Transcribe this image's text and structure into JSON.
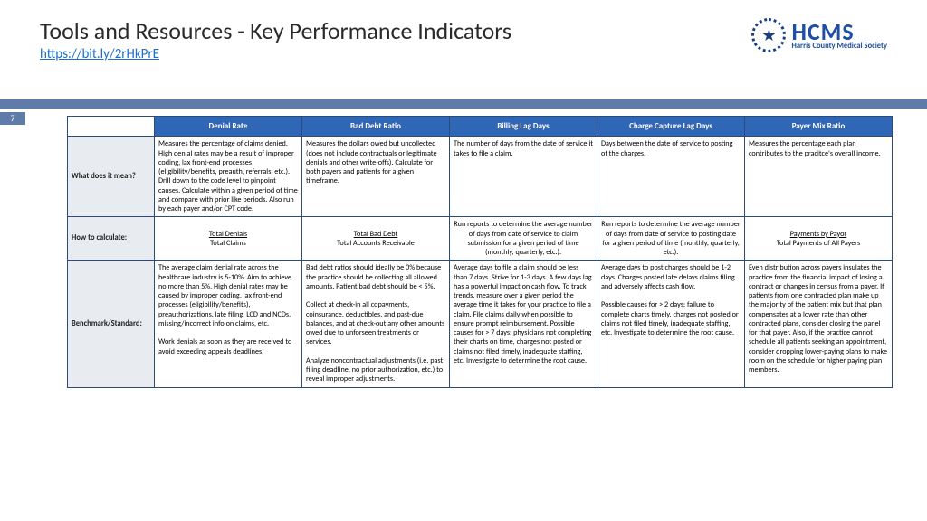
{
  "title": "Tools and Resources - Key Performance Indicators",
  "link": "https://bit.ly/2rHkPrE",
  "page_number": "7",
  "logo": {
    "main": "HCMS",
    "sub": "Harris County Medical Society"
  },
  "table": {
    "header_bg": "#2f66b5",
    "header_fg": "#ffffff",
    "border_color": "#2c4a7a",
    "rowhead_bg": "#e8ebef",
    "columns": [
      "Denial Rate",
      "Bad Debt Ratio",
      "Billing Lag Days",
      "Charge Capture Lag Days",
      "Payer Mix Ratio"
    ],
    "row_labels": [
      "What does it mean?",
      "How to calculate:",
      "Benchmark/Standard:"
    ],
    "rows": {
      "mean": [
        "Measures the percentage of claims denied. High denial rates may be a result of improper coding, lax front-end processes (eligibility/benefits, preauth, referrals, etc.). Drill down to the code level to pinpoint causes. Calculate within a given period of time and compare with prior like periods. Also run by each payer and/or CPT code.",
        "Measures the dollars owed but uncollected (does not include contractuals or legitimate denials and other write-offs). Calculate for both payers and patients for a given timeframe.",
        "The number of days from the date of service it takes to file a claim.",
        "Days between the date of service to posting of the charges.",
        "Measures the percentage each plan contributes to the pracitce's overall income."
      ],
      "calc": [
        {
          "top": "Total Denials",
          "bottom": "Total Claims"
        },
        {
          "top": "Total Bad Debt",
          "bottom": "Total Accounts Receivable"
        },
        {
          "text": "Run reports to determine the average number of days from date of service to claim submission for a given period of time (monthly, quarterly, etc.)."
        },
        {
          "text": "Run reports to determine the average number of days from date of service to posting date for a given period of time (monthly, quarterly, etc.)."
        },
        {
          "top": "Payments by Payor",
          "bottom": "Total Payments of All Payers"
        }
      ],
      "bench": [
        "The average claim denial rate across the healthcare industry is 5-10%. Aim to achieve no more than 5%. High denial rates may be caused by improper coding, lax front-end processes (eligibility/benefits), preauthorizations, late filing, LCD and NCDs, missing/incorrect info on claims, etc.\n\nWork denials as soon as they are received to avoid exceeding appeals deadlines.",
        "Bad debt ratios should ideally be 0% because the practice should be collecting all allowed amounts. Patient bad debt should be < 5%.\n\nCollect at check-in all copayments, coinsurance, deductibles, and past-due balances, and at check-out any other amounts owed due to unforseen treatments or services.\n\nAnalyze noncontractual adjustments (i.e. past filing deadline, no prior authorization, etc.) to reveal improper adjustments.",
        "Average days to file a claim should be less than 7 days. Strive for 1-3 days. A few days lag has a powerful impact on cash flow. To track trends, measure over a given period the average time it takes for your practice to file a claim. File claims daily when possible to ensure prompt reimbursement. Possible causes for > 7 days: physicians not completing their charts on time, charges not posted or claims not filed timely, inadequate staffing, etc. Investigate to determine the root cause.",
        "Average days to post charges should be 1-2 days. Charges posted late delays claims filing and adversely affects cash flow.\n\nPossible causes for > 2 days: failure to complete charts timely, charges not posted or claims not filed timely, inadequate staffing, etc. Investigate to determine the root cause.",
        "Even distribution across payers insulates the practice from the financial impact of losing a contract or changes in census from a payer. If patients from one contracted plan make up the majority of the patient mix but that plan compensates at a lower rate than other contracted plans, consider closing the panel for that payer. Also, if the practice cannot schedule all patients seeking an appointment, consider dropping lower-paying plans to make room on the schedule for higher paying plan members."
      ]
    }
  }
}
